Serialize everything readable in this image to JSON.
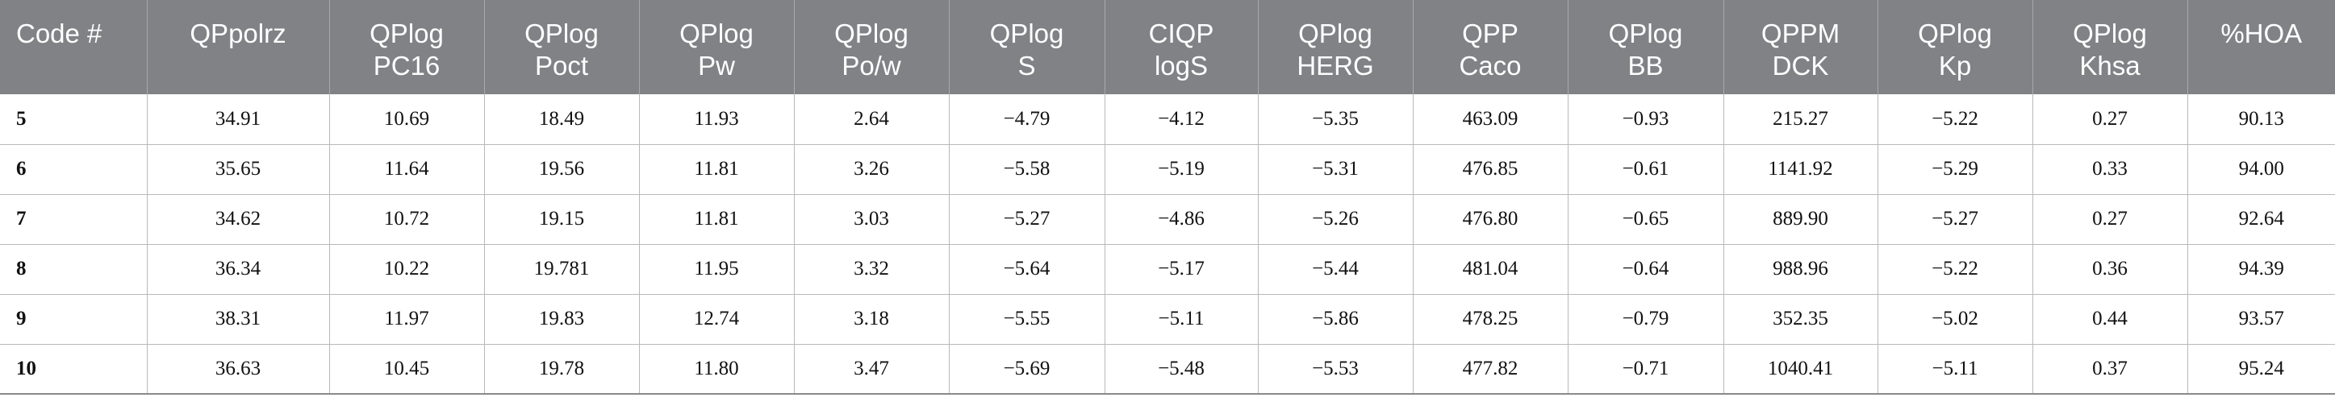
{
  "columns": [
    [
      "Code #"
    ],
    [
      "QPpolrz"
    ],
    [
      "QPlog",
      "PC16"
    ],
    [
      "QPlog",
      "Poct"
    ],
    [
      "QPlog",
      "Pw"
    ],
    [
      "QPlog",
      "Po/w"
    ],
    [
      "QPlog",
      "S"
    ],
    [
      "CIQP",
      "logS"
    ],
    [
      "QPlog",
      "HERG"
    ],
    [
      "QPP",
      "Caco"
    ],
    [
      "QPlog",
      "BB"
    ],
    [
      "QPPM",
      "DCK"
    ],
    [
      "QPlog",
      "Kp"
    ],
    [
      "QPlog",
      "Khsa"
    ],
    [
      "%HOA"
    ]
  ],
  "rows": [
    [
      "5",
      "34.91",
      "10.69",
      "18.49",
      "11.93",
      "2.64",
      "−4.79",
      "−4.12",
      "−5.35",
      "463.09",
      "−0.93",
      "215.27",
      "−5.22",
      "0.27",
      "90.13"
    ],
    [
      "6",
      "35.65",
      "11.64",
      "19.56",
      "11.81",
      "3.26",
      "−5.58",
      "−5.19",
      "−5.31",
      "476.85",
      "−0.61",
      "1141.92",
      "−5.29",
      "0.33",
      "94.00"
    ],
    [
      "7",
      "34.62",
      "10.72",
      "19.15",
      "11.81",
      "3.03",
      "−5.27",
      "−4.86",
      "−5.26",
      "476.80",
      "−0.65",
      "889.90",
      "−5.27",
      "0.27",
      "92.64"
    ],
    [
      "8",
      "36.34",
      "10.22",
      "19.781",
      "11.95",
      "3.32",
      "−5.64",
      "−5.17",
      "−5.44",
      "481.04",
      "−0.64",
      "988.96",
      "−5.22",
      "0.36",
      "94.39"
    ],
    [
      "9",
      "38.31",
      "11.97",
      "19.83",
      "12.74",
      "3.18",
      "−5.55",
      "−5.11",
      "−5.86",
      "478.25",
      "−0.79",
      "352.35",
      "−5.02",
      "0.44",
      "93.57"
    ],
    [
      "10",
      "36.63",
      "10.45",
      "19.78",
      "11.80",
      "3.47",
      "−5.69",
      "−5.48",
      "−5.53",
      "477.82",
      "−0.71",
      "1040.41",
      "−5.11",
      "0.37",
      "95.24"
    ]
  ]
}
